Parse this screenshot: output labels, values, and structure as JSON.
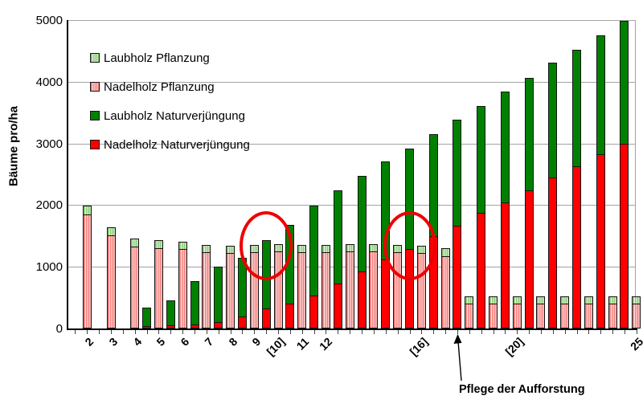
{
  "chart_data": {
    "type": "bar",
    "subtype": "stacked-grouped",
    "title": "",
    "ylabel": "Bäume pro/ha",
    "ylim": [
      0,
      5000
    ],
    "yticks": [
      "0",
      "1000",
      "2000",
      "3000",
      "4000",
      "5000"
    ],
    "ytick_values": [
      0,
      1000,
      2000,
      3000,
      4000,
      5000
    ],
    "grid": "horizontal",
    "legend_position": "upper-left-inside",
    "legend": [
      {
        "label": "Laubholz Pflanzung",
        "pattern": "striped",
        "color": "#8cca77",
        "stripe_bg": "#f0f8ec"
      },
      {
        "label": "Nadelholz Pflanzung",
        "pattern": "striped",
        "color": "#f4817e",
        "stripe_bg": "#fcebea"
      },
      {
        "label": "Laubholz Naturverjüngung",
        "pattern": "solid",
        "color": "#008000"
      },
      {
        "label": "Nadelholz Naturverjüngung",
        "pattern": "solid",
        "color": "#ff0000"
      }
    ],
    "group_note": "Each year has two stacked bars: left = Naturverjüngung (red Nadelholz below, dark green Laubholz above), right = Pflanzung (pink Nadelholz below, light green Laubholz above). Years 2-4 have no Naturverjüngung bar.",
    "years": [
      {
        "label": "2",
        "nv_nadelholz": 0,
        "nv_laubholz": 0,
        "pf_nadelholz": 1850,
        "pf_laubholz": 150
      },
      {
        "label": "3",
        "nv_nadelholz": 0,
        "nv_laubholz": 0,
        "pf_nadelholz": 1510,
        "pf_laubholz": 150
      },
      {
        "label": "4",
        "nv_nadelholz": 0,
        "nv_laubholz": 0,
        "pf_nadelholz": 1330,
        "pf_laubholz": 140
      },
      {
        "label": "5",
        "nv_nadelholz": 35,
        "nv_laubholz": 315,
        "pf_nadelholz": 1305,
        "pf_laubholz": 140
      },
      {
        "label": "6",
        "nv_nadelholz": 50,
        "nv_laubholz": 425,
        "pf_nadelholz": 1285,
        "pf_laubholz": 140
      },
      {
        "label": "7",
        "nv_nadelholz": 65,
        "nv_laubholz": 715,
        "pf_nadelholz": 1240,
        "pf_laubholz": 130
      },
      {
        "label": "8",
        "nv_nadelholz": 110,
        "nv_laubholz": 900,
        "pf_nadelholz": 1220,
        "pf_laubholz": 140
      },
      {
        "label": "9",
        "nv_nadelholz": 200,
        "nv_laubholz": 960,
        "pf_nadelholz": 1240,
        "pf_laubholz": 130
      },
      {
        "label": "[10]",
        "nv_nadelholz": 320,
        "nv_laubholz": 1120,
        "pf_nadelholz": 1250,
        "pf_laubholz": 130
      },
      {
        "label": "11",
        "nv_nadelholz": 400,
        "nv_laubholz": 1290,
        "pf_nadelholz": 1235,
        "pf_laubholz": 130
      },
      {
        "label": "12",
        "nv_nadelholz": 530,
        "nv_laubholz": 1470,
        "pf_nadelholz": 1235,
        "pf_laubholz": 130
      },
      {
        "label": "",
        "nv_nadelholz": 735,
        "nv_laubholz": 1515,
        "pf_nadelholz": 1250,
        "pf_laubholz": 135
      },
      {
        "label": "",
        "nv_nadelholz": 920,
        "nv_laubholz": 1570,
        "pf_nadelholz": 1250,
        "pf_laubholz": 135
      },
      {
        "label": "",
        "nv_nadelholz": 1120,
        "nv_laubholz": 1600,
        "pf_nadelholz": 1240,
        "pf_laubholz": 130
      },
      {
        "label": "[16]",
        "nv_nadelholz": 1290,
        "nv_laubholz": 1640,
        "pf_nadelholz": 1225,
        "pf_laubholz": 130
      },
      {
        "label": "",
        "nv_nadelholz": 1500,
        "nv_laubholz": 1670,
        "pf_nadelholz": 1175,
        "pf_laubholz": 135
      },
      {
        "label": "",
        "nv_nadelholz": 1670,
        "nv_laubholz": 1730,
        "pf_nadelholz": 410,
        "pf_laubholz": 130
      },
      {
        "label": "",
        "nv_nadelholz": 1870,
        "nv_laubholz": 1750,
        "pf_nadelholz": 410,
        "pf_laubholz": 130
      },
      {
        "label": "[20]",
        "nv_nadelholz": 2050,
        "nv_laubholz": 1800,
        "pf_nadelholz": 410,
        "pf_laubholz": 130
      },
      {
        "label": "",
        "nv_nadelholz": 2240,
        "nv_laubholz": 1830,
        "pf_nadelholz": 410,
        "pf_laubholz": 130
      },
      {
        "label": "",
        "nv_nadelholz": 2450,
        "nv_laubholz": 1870,
        "pf_nadelholz": 410,
        "pf_laubholz": 130
      },
      {
        "label": "",
        "nv_nadelholz": 2630,
        "nv_laubholz": 1900,
        "pf_nadelholz": 410,
        "pf_laubholz": 130
      },
      {
        "label": "",
        "nv_nadelholz": 2820,
        "nv_laubholz": 1950,
        "pf_nadelholz": 410,
        "pf_laubholz": 130
      },
      {
        "label": "25",
        "nv_nadelholz": 3000,
        "nv_laubholz": 2000,
        "pf_nadelholz": 410,
        "pf_laubholz": 130
      }
    ],
    "annotations": {
      "circled_year_indexes": [
        8,
        14
      ],
      "circle_color": "#ee0000",
      "arrow_year_index": 16,
      "arrow_label": "Pflege der Aufforstung"
    }
  }
}
